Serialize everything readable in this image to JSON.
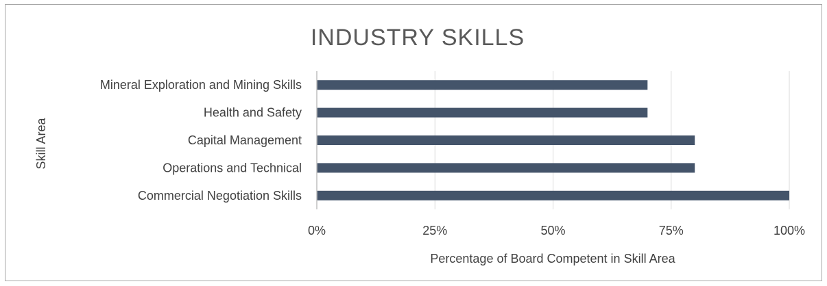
{
  "chart_data": {
    "type": "bar",
    "orientation": "horizontal",
    "title": "INDUSTRY SKILLS",
    "xlabel": "Percentage of Board Competent in Skill Area",
    "ylabel": "Skill Area",
    "categories": [
      "Mineral Exploration and Mining Skills",
      "Health and Safety",
      "Capital Management",
      "Operations and Technical",
      "Commercial Negotiation Skills"
    ],
    "values": [
      70,
      70,
      80,
      80,
      100
    ],
    "xlim": [
      0,
      100
    ],
    "xticks": [
      0,
      25,
      50,
      75,
      100
    ],
    "xtick_labels": [
      "0%",
      "25%",
      "50%",
      "75%",
      "100%"
    ],
    "grid": "vertical",
    "legend": "none",
    "bar_color": "#44546a",
    "grid_color": "#d9d9d9"
  }
}
